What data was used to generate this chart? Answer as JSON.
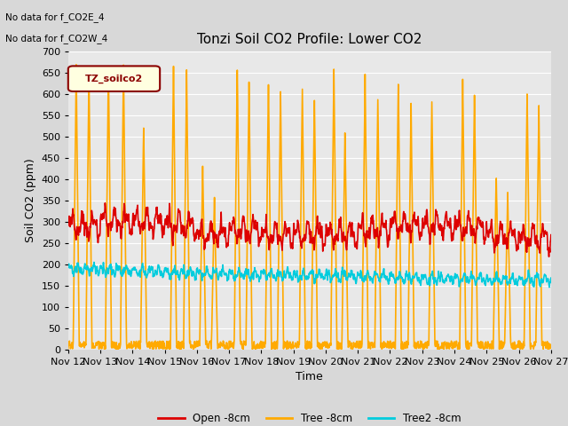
{
  "title": "Tonzi Soil CO2 Profile: Lower CO2",
  "ylabel": "Soil CO2 (ppm)",
  "xlabel": "Time",
  "no_data_text_1": "No data for f_CO2E_4",
  "no_data_text_2": "No data for f_CO2W_4",
  "legend_label": "TZ_soilco2",
  "series_labels": [
    "Open -8cm",
    "Tree -8cm",
    "Tree2 -8cm"
  ],
  "series_colors": [
    "#dd0000",
    "#ffaa00",
    "#00ccdd"
  ],
  "ylim": [
    0,
    700
  ],
  "yticks": [
    0,
    50,
    100,
    150,
    200,
    250,
    300,
    350,
    400,
    450,
    500,
    550,
    600,
    650,
    700
  ],
  "x_tick_labels": [
    "Nov 12",
    "Nov 13",
    "Nov 14",
    "Nov 15",
    "Nov 16",
    "Nov 17",
    "Nov 18",
    "Nov 19",
    "Nov 20",
    "Nov 21",
    "Nov 22",
    "Nov 23",
    "Nov 24",
    "Nov 25",
    "Nov 26",
    "Nov 27"
  ],
  "n_days": 15,
  "bg_color": "#d8d8d8",
  "plot_bg_color": "#e8e8e8",
  "linewidth_red": 1.2,
  "linewidth_orange": 1.2,
  "linewidth_cyan": 1.2,
  "figsize": [
    6.4,
    4.8
  ],
  "dpi": 100
}
